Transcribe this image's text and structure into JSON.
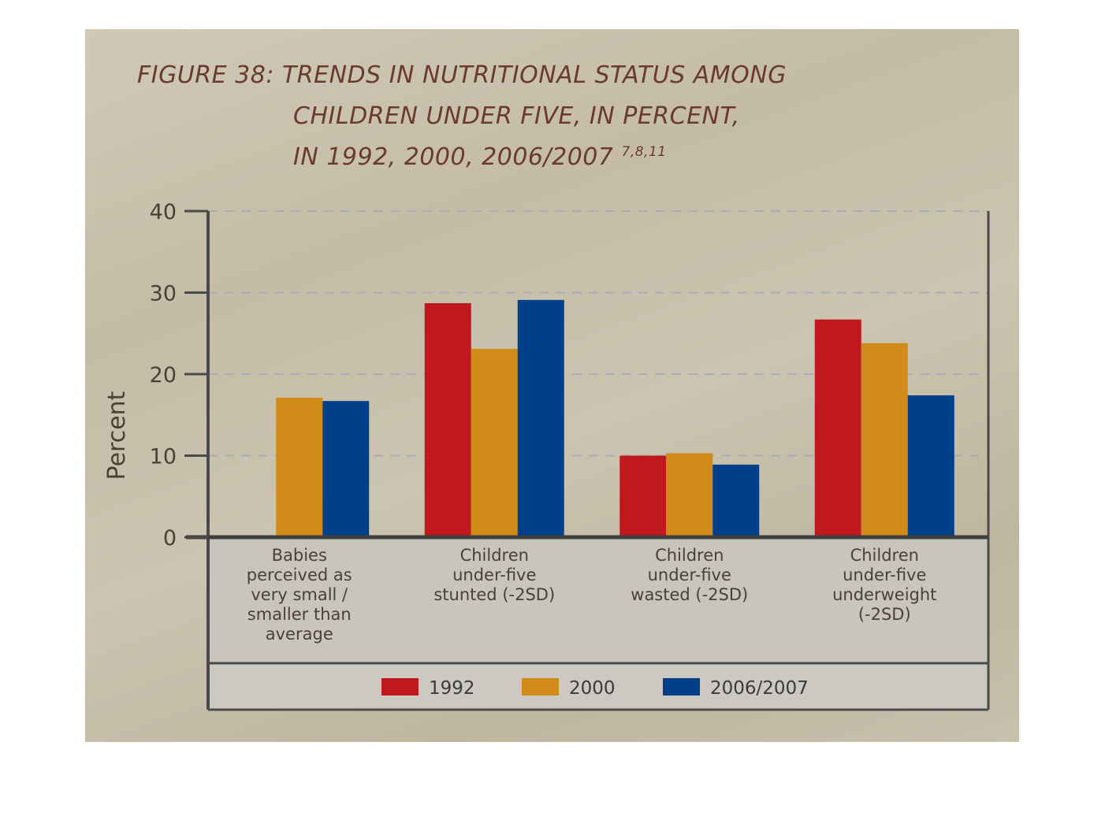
{
  "figure": {
    "title_line1": "FIGURE 38: TRENDS IN NUTRITIONAL STATUS AMONG",
    "title_line2": "CHILDREN UNDER FIVE, IN PERCENT,",
    "title_line3": "IN 1992, 2000, 2006/2007",
    "title_sup": "7,8,11"
  },
  "chart_data": {
    "type": "bar",
    "title": "FIGURE 38: TRENDS IN NUTRITIONAL STATUS AMONG CHILDREN UNDER FIVE, IN PERCENT, IN 1992, 2000, 2006/2007",
    "ylabel": "Percent",
    "xlabel": "",
    "ylim": [
      0,
      40
    ],
    "yticks": [
      0,
      10,
      20,
      30,
      40
    ],
    "grid": true,
    "legend_position": "bottom",
    "categories": [
      [
        "Babies",
        "perceived as",
        "very small /",
        "smaller than",
        "average"
      ],
      [
        "Children",
        "under-five",
        "stunted (-2SD)"
      ],
      [
        "Children",
        "under-five",
        "wasted (-2SD)"
      ],
      [
        "Children",
        "under-five",
        "underweight",
        "(-2SD)"
      ]
    ],
    "series": [
      {
        "name": "1992",
        "color": "#c0181f",
        "values": [
          null,
          28.7,
          10.0,
          26.7
        ]
      },
      {
        "name": "2000",
        "color": "#d08b18",
        "values": [
          17.1,
          23.1,
          10.3,
          23.8
        ]
      },
      {
        "name": "2006/2007",
        "color": "#003f8a",
        "values": [
          16.7,
          29.1,
          8.9,
          17.4
        ]
      }
    ]
  }
}
